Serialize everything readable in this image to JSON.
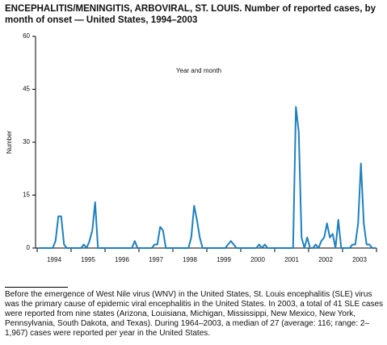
{
  "chart_data": {
    "type": "line",
    "title": "ENCEPHALITIS/MENINGITIS, ARBOVIRAL, ST. LOUIS.",
    "subtitle": "Number of reported cases, by month of onset — United States, 1994–2003",
    "x_label": "Year and month",
    "y_label": "Number",
    "footnote": "Before the emergence of West Nile virus (WNV) in the United States, St. Louis encephalitis (SLE) virus was the primary cause of epidemic viral encephalitis in the United States. In 2003, a total of 41 SLE cases were reported from nine states (Arizona, Louisiana, Michigan, Mississippi, New Mexico, New York, Pennsylvania, South Dakota, and Texas). During 1964–2003, a median of 27 (average: 116; range: 2–1,967) cases were reported per year in the United States.",
    "categories": [
      null,
      null,
      null,
      null,
      null,
      null,
      "1994",
      null,
      null,
      null,
      null,
      null,
      null,
      null,
      null,
      null,
      null,
      null,
      "1995",
      null,
      null,
      null,
      null,
      null,
      null,
      null,
      null,
      null,
      null,
      null,
      "1996",
      null,
      null,
      null,
      null,
      null,
      null,
      null,
      null,
      null,
      null,
      null,
      "1997",
      null,
      null,
      null,
      null,
      null,
      null,
      null,
      null,
      null,
      null,
      null,
      "1998",
      null,
      null,
      null,
      null,
      null,
      null,
      null,
      null,
      null,
      null,
      null,
      "1999",
      null,
      null,
      null,
      null,
      null,
      null,
      null,
      null,
      null,
      null,
      null,
      "2000",
      null,
      null,
      null,
      null,
      null,
      null,
      null,
      null,
      null,
      null,
      null,
      "2001",
      null,
      null,
      null,
      null,
      null,
      null,
      null,
      null,
      null,
      null,
      null,
      "2002",
      null,
      null,
      null,
      null,
      null,
      null,
      null,
      null,
      null,
      null,
      null,
      "2003",
      null,
      null,
      null,
      null,
      null
    ],
    "series": [
      {
        "name": "Number",
        "color": "#1f80bd",
        "values": [
          0,
          0,
          0,
          0,
          0,
          0,
          2,
          9,
          9,
          1,
          0,
          0,
          0,
          0,
          0,
          0,
          1,
          0,
          2,
          5,
          13,
          0,
          0,
          0,
          0,
          0,
          0,
          0,
          0,
          0,
          0,
          0,
          0,
          0,
          2,
          0,
          0,
          0,
          0,
          0,
          0,
          1,
          1,
          6,
          5,
          0,
          0,
          0,
          0,
          0,
          0,
          0,
          0,
          0,
          3,
          12,
          8,
          3,
          0,
          0,
          0,
          0,
          0,
          0,
          0,
          0,
          0,
          1,
          2,
          1,
          0,
          0,
          0,
          0,
          0,
          0,
          0,
          0,
          1,
          0,
          1,
          0,
          0,
          0,
          0,
          0,
          0,
          0,
          0,
          0,
          0,
          40,
          33,
          3,
          0,
          3,
          0,
          0,
          1,
          0,
          2,
          3,
          7,
          3,
          4,
          0,
          8,
          0,
          0,
          0,
          0,
          1,
          1,
          7,
          24,
          7,
          1,
          1,
          0,
          0
        ]
      }
    ],
    "ylim": [
      0,
      60
    ],
    "yticks": [
      0,
      15,
      30,
      45,
      60
    ],
    "grid": false
  }
}
